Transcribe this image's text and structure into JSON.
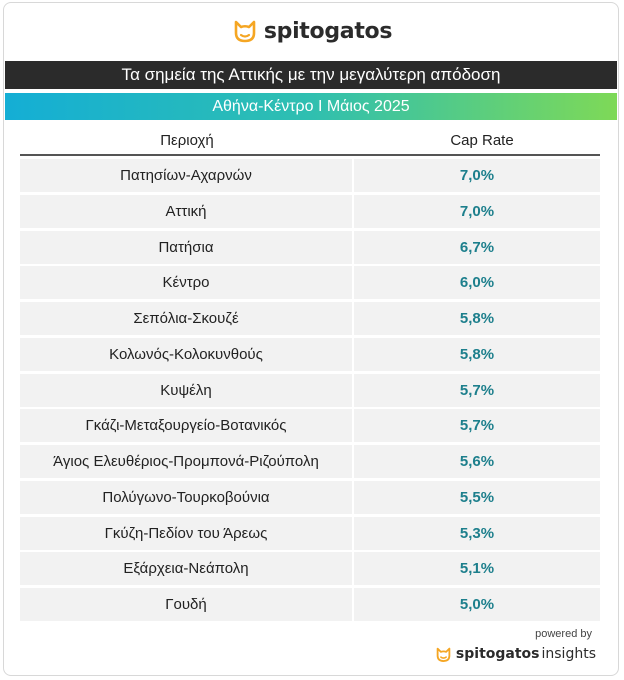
{
  "brand": {
    "name": "spitogatos",
    "powered_by": "powered by",
    "insights": "insights",
    "accent_color": "#f5a623"
  },
  "header": {
    "title": "Τα σημεία της Αττικής με την μεγαλύτερη απόδοση",
    "subtitle": "Αθήνα-Κέντρο Ι Μάιος 2025"
  },
  "table": {
    "columns": [
      "Περιοχή",
      "Cap Rate"
    ],
    "rows": [
      {
        "area": "Πατησίων-Αχαρνών",
        "cap_rate": "7,0%"
      },
      {
        "area": "Αττική",
        "cap_rate": "7,0%"
      },
      {
        "area": "Πατήσια",
        "cap_rate": "6,7%"
      },
      {
        "area": "Κέντρο",
        "cap_rate": "6,0%"
      },
      {
        "area": "Σεπόλια-Σκουζέ",
        "cap_rate": "5,8%"
      },
      {
        "area": "Κολωνός-Κολοκυνθούς",
        "cap_rate": "5,8%"
      },
      {
        "area": "Κυψέλη",
        "cap_rate": "5,7%"
      },
      {
        "area": "Γκάζι-Μεταξουργείο-Βοτανικός",
        "cap_rate": "5,7%"
      },
      {
        "area": "Άγιος Ελευθέριος-Προμπονά-Ριζούπολη",
        "cap_rate": "5,6%"
      },
      {
        "area": "Πολύγωνο-Τουρκοβούνια",
        "cap_rate": "5,5%"
      },
      {
        "area": "Γκύζη-Πεδίον του Άρεως",
        "cap_rate": "5,3%"
      },
      {
        "area": "Εξάρχεια-Νεάπολη",
        "cap_rate": "5,1%"
      },
      {
        "area": "Γουδή",
        "cap_rate": "5,0%"
      }
    ]
  },
  "chart_data": {
    "type": "table",
    "title": "Τα σημεία της Αττικής με την μεγαλύτερη απόδοση",
    "subtitle": "Αθήνα-Κέντρο Ι Μάιος 2025",
    "columns": [
      "Περιοχή",
      "Cap Rate"
    ],
    "categories": [
      "Πατησίων-Αχαρνών",
      "Αττική",
      "Πατήσια",
      "Κέντρο",
      "Σεπόλια-Σκουζέ",
      "Κολωνός-Κολοκυνθούς",
      "Κυψέλη",
      "Γκάζι-Μεταξουργείο-Βοτανικός",
      "Άγιος Ελευθέριος-Προμπονά-Ριζούπολη",
      "Πολύγωνο-Τουρκοβούνια",
      "Γκύζη-Πεδίον του Άρεως",
      "Εξάρχεια-Νεάπολη",
      "Γουδή"
    ],
    "values": [
      7.0,
      7.0,
      6.7,
      6.0,
      5.8,
      5.8,
      5.7,
      5.7,
      5.6,
      5.5,
      5.3,
      5.1,
      5.0
    ]
  }
}
